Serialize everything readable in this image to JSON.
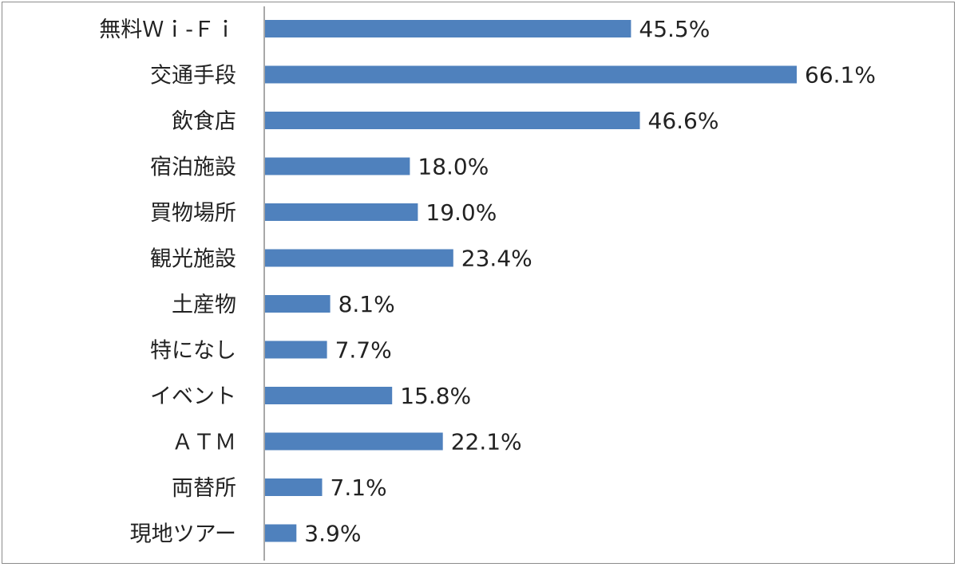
{
  "chart_data": {
    "type": "bar",
    "orientation": "horizontal",
    "categories": [
      "無料Ｗｉ-Ｆｉ",
      "交通手段",
      "飲食店",
      "宿泊施設",
      "買物場所",
      "観光施設",
      "土産物",
      "特になし",
      "イベント",
      "ＡＴＭ",
      "両替所",
      "現地ツアー"
    ],
    "values": [
      45.5,
      66.1,
      46.6,
      18.0,
      19.0,
      23.4,
      8.1,
      7.7,
      15.8,
      22.1,
      7.1,
      3.9
    ],
    "value_labels": [
      "45.5%",
      "66.1%",
      "46.6%",
      "18.0%",
      "19.0%",
      "23.4%",
      "8.1%",
      "7.7%",
      "15.8%",
      "22.1%",
      "7.1%",
      "3.9%"
    ],
    "xlim": [
      0,
      70
    ],
    "bar_color": "#4f81bd",
    "grid": false,
    "legend": "none"
  }
}
